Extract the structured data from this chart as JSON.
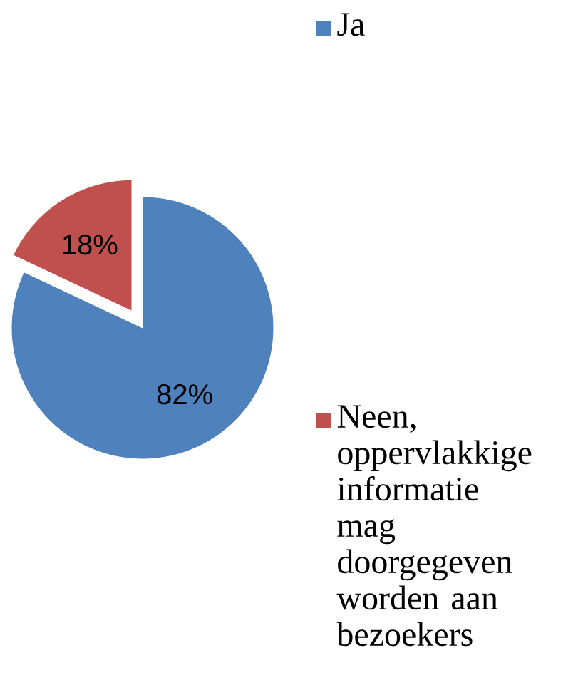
{
  "chart_data": {
    "type": "pie",
    "categories": [
      "Ja",
      "Neen, oppervlakkige informatie mag doorgegeven worden aan bezoekers"
    ],
    "values": [
      82,
      18
    ],
    "value_labels": [
      "82%",
      "18%"
    ],
    "colors": [
      "#4f81bd",
      "#c0504d"
    ],
    "legend": "right"
  }
}
